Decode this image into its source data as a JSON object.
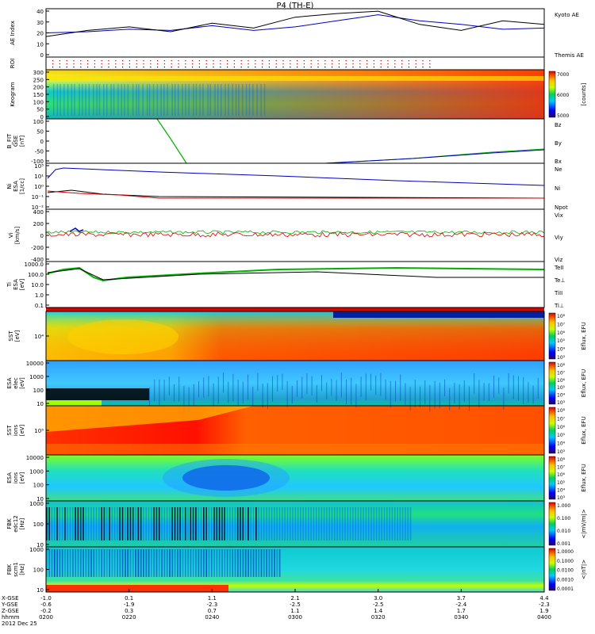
{
  "title": "P4 (TH-E)",
  "colors": {
    "red": "#d40000",
    "green": "#00b000",
    "blue": "#0000c0",
    "black": "#000000"
  },
  "panels": [
    {
      "ylabel": [
        "AE Index"
      ],
      "yticks": [
        "40",
        "30",
        "20",
        "10",
        "0"
      ],
      "legend": [
        {
          "text": "Kyoto AE",
          "color": "blue"
        },
        {
          "text": "Themis AE",
          "color": "black"
        }
      ]
    },
    {
      "ylabel": [
        "ROI"
      ],
      "yticks": [],
      "legend": []
    },
    {
      "ylabel": [
        "Keogram"
      ],
      "yticks": [
        "300",
        "250",
        "200",
        "150",
        "100",
        "50",
        "0"
      ],
      "legend": [],
      "colorbar": {
        "label": "[counts]",
        "ticks": [
          "7000",
          "6000",
          "5000"
        ]
      }
    },
    {
      "ylabel": [
        "B_FIT",
        "GSE",
        "[nT]"
      ],
      "yticks": [
        "100",
        "50",
        "0",
        "-50",
        "-100"
      ],
      "legend": [
        {
          "text": "Bz",
          "color": "red"
        },
        {
          "text": "By",
          "color": "green"
        },
        {
          "text": "Bx",
          "color": "blue"
        }
      ]
    },
    {
      "ylabel": [
        "Ni",
        "ESA",
        "[1/cc]"
      ],
      "yticks": [
        "10⁵",
        "10¹",
        "10⁰",
        "10⁻¹",
        "10⁻²"
      ],
      "legend": [
        {
          "text": "Ne",
          "color": "red"
        },
        {
          "text": "Ni",
          "color": "black"
        },
        {
          "text": "Npot",
          "color": "blue"
        }
      ]
    },
    {
      "ylabel": [
        "Vi",
        "[km/s]"
      ],
      "yticks": [
        "400",
        "200",
        "0",
        "-200",
        "-400"
      ],
      "legend": [
        {
          "text": "Vix",
          "color": "red"
        },
        {
          "text": "Viy",
          "color": "green"
        },
        {
          "text": "Viz",
          "color": "blue"
        }
      ]
    },
    {
      "ylabel": [
        "Ti",
        "ESA",
        "[eV]"
      ],
      "yticks": [
        "1000.0",
        "100.0",
        "10.0",
        "1.0",
        "0.1"
      ],
      "legend": [
        {
          "text": "TeII",
          "color": "black"
        },
        {
          "text": "Te⊥",
          "color": "red"
        },
        {
          "text": "TiII",
          "color": "green"
        },
        {
          "text": "Ti⊥",
          "color": "blue"
        }
      ]
    },
    {
      "ylabel": [
        "SST",
        "[eV]"
      ],
      "yticks": [
        "10⁴"
      ],
      "colorbar": {
        "label": "Eflux, EFU",
        "ticks": [
          "10⁸",
          "10⁷",
          "10⁶",
          "10⁵",
          "10⁴",
          "10³"
        ]
      }
    },
    {
      "ylabel": [
        "ESA",
        "elec",
        "[eV]"
      ],
      "yticks": [
        "10000",
        "1000",
        "100",
        "10"
      ],
      "colorbar": {
        "label": "Eflux, EFU",
        "ticks": [
          "10⁸",
          "10⁷",
          "10⁶",
          "10⁵",
          "10⁴",
          "10³"
        ]
      }
    },
    {
      "ylabel": [
        "SST",
        "ions",
        "[eV]"
      ],
      "yticks": [
        "10⁵"
      ],
      "colorbar": {
        "label": "Eflux, EFU",
        "ticks": [
          "10⁸",
          "10⁷",
          "10⁶",
          "10⁵",
          "10⁴",
          "10³"
        ]
      }
    },
    {
      "ylabel": [
        "ESA",
        "ions",
        "[eV]"
      ],
      "yticks": [
        "10000",
        "1000",
        "100",
        "10"
      ],
      "colorbar": {
        "label": "Eflux, EFU",
        "ticks": [
          "10⁸",
          "10⁷",
          "10⁶",
          "10⁵",
          "10⁴",
          "10³"
        ]
      }
    },
    {
      "ylabel": [
        "FBK",
        "edc12",
        "[Hz]"
      ],
      "yticks": [
        "1000",
        "100",
        "10"
      ],
      "colorbar": {
        "label": "<|mV/m|>",
        "ticks": [
          "1.000",
          "0.100",
          "0.010",
          "0.001"
        ]
      }
    },
    {
      "ylabel": [
        "FBK",
        "scm1",
        "[Hz]"
      ],
      "yticks": [
        "1000",
        "100",
        "10"
      ],
      "colorbar": {
        "label": "<|nT|>",
        "ticks": [
          "1.0000",
          "0.1000",
          "0.0100",
          "0.0010",
          "0.0001"
        ]
      }
    }
  ],
  "xaxis": {
    "row_labels": [
      "X-GSE",
      "Y-GSE",
      "Z-GSE",
      "hhmm",
      "2012 Dec 25"
    ],
    "columns": [
      {
        "v": [
          "-1.0",
          "-0.6",
          "-0.2",
          "0200"
        ]
      },
      {
        "v": [
          "0.1",
          "-1.9",
          "0.3",
          "0220"
        ]
      },
      {
        "v": [
          "1.1",
          "-2.3",
          "0.7",
          "0240"
        ]
      },
      {
        "v": [
          "2.1",
          "-2.5",
          "1.1",
          "0300"
        ]
      },
      {
        "v": [
          "3.0",
          "-2.5",
          "1.4",
          "0320"
        ]
      },
      {
        "v": [
          "3.7",
          "-2.4",
          "1.7",
          "0340"
        ]
      },
      {
        "v": [
          "4.4",
          "-2.3",
          "1.9",
          "0400"
        ]
      }
    ]
  },
  "chart_data": {
    "type": "line",
    "title": "P4 (TH-E)",
    "x_label": "hhmm",
    "x_ticks": [
      "0200",
      "0220",
      "0240",
      "0300",
      "0320",
      "0340",
      "0400"
    ],
    "series": [
      {
        "name": "Kyoto AE",
        "panel": "AE Index",
        "x": [
          0,
          10,
          20,
          30,
          40,
          50,
          60,
          70,
          80,
          90,
          100,
          110,
          120
        ],
        "values": [
          20,
          21,
          23,
          22,
          26,
          22,
          25,
          30,
          35,
          30,
          27,
          23,
          24
        ]
      },
      {
        "name": "Themis AE",
        "panel": "AE Index",
        "x": [
          0,
          10,
          20,
          30,
          40,
          50,
          60,
          70,
          80,
          90,
          100,
          110,
          120
        ],
        "values": [
          17,
          22,
          25,
          21,
          28,
          24,
          33,
          36,
          38,
          27,
          22,
          30,
          27
        ]
      }
    ]
  }
}
